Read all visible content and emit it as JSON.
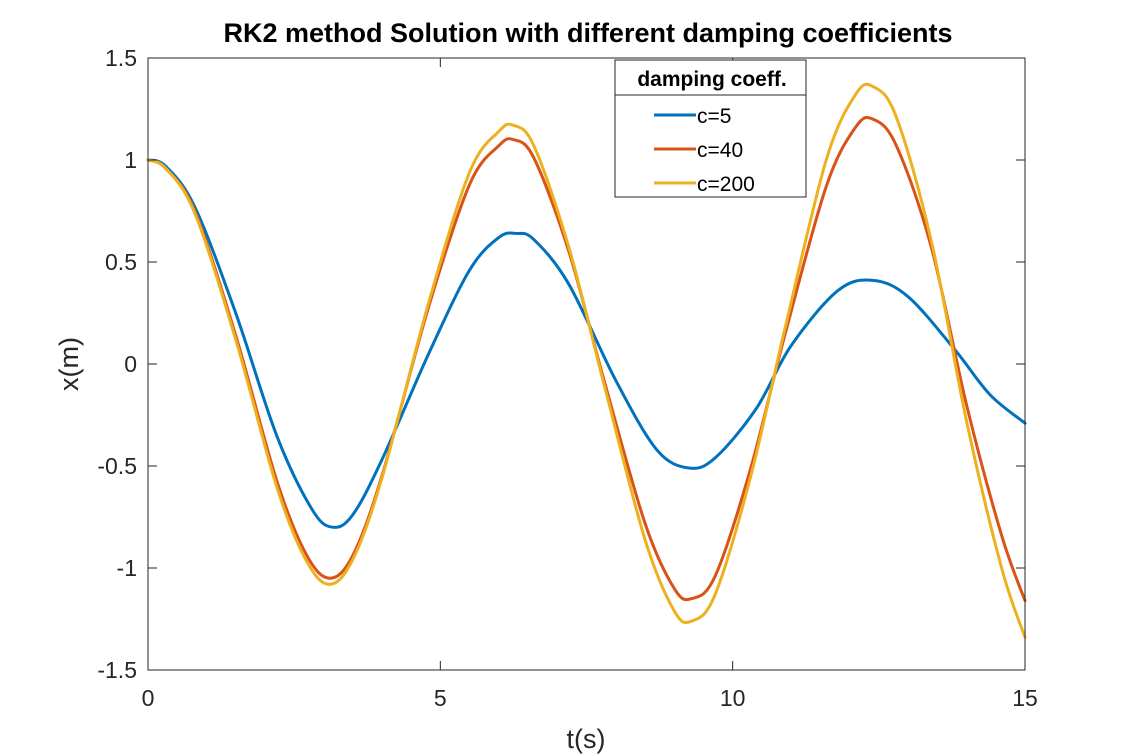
{
  "chart_data": {
    "type": "line",
    "title": "RK2 method Solution with different damping coefficients",
    "xlabel": "t(s)",
    "ylabel": "x(m)",
    "xlim": [
      0,
      15
    ],
    "ylim": [
      -1.5,
      1.5
    ],
    "xticks": [
      "0",
      "5",
      "10",
      "15"
    ],
    "yticks": [
      "-1.5",
      "-1",
      "-0.5",
      "0",
      "0.5",
      "1",
      "1.5"
    ],
    "grid": false,
    "legend": {
      "title": "damping coeff.",
      "placement": "top-center-right",
      "entries": [
        "c=5",
        "c=40",
        "c=200"
      ]
    },
    "series": [
      {
        "name": "c=5",
        "color": "#0072BD",
        "points": [
          [
            0,
            1.0
          ],
          [
            0.3,
            0.97
          ],
          [
            0.8,
            0.77
          ],
          [
            1.5,
            0.25
          ],
          [
            2.2,
            -0.35
          ],
          [
            2.8,
            -0.71
          ],
          [
            3.15,
            -0.8
          ],
          [
            3.5,
            -0.74
          ],
          [
            4.0,
            -0.47
          ],
          [
            4.8,
            0.05
          ],
          [
            5.5,
            0.46
          ],
          [
            6.0,
            0.62
          ],
          [
            6.3,
            0.64
          ],
          [
            6.6,
            0.61
          ],
          [
            7.2,
            0.39
          ],
          [
            8.0,
            -0.08
          ],
          [
            8.7,
            -0.42
          ],
          [
            9.25,
            -0.51
          ],
          [
            9.7,
            -0.46
          ],
          [
            10.4,
            -0.22
          ],
          [
            11.0,
            0.09
          ],
          [
            11.8,
            0.36
          ],
          [
            12.4,
            0.41
          ],
          [
            13.0,
            0.33
          ],
          [
            13.8,
            0.07
          ],
          [
            14.4,
            -0.15
          ],
          [
            15.0,
            -0.29
          ]
        ]
      },
      {
        "name": "c=40",
        "color": "#D95319",
        "points": [
          [
            0,
            1.0
          ],
          [
            0.3,
            0.96
          ],
          [
            0.8,
            0.75
          ],
          [
            1.5,
            0.14
          ],
          [
            2.2,
            -0.57
          ],
          [
            2.7,
            -0.93
          ],
          [
            3.1,
            -1.05
          ],
          [
            3.5,
            -0.94
          ],
          [
            4.0,
            -0.55
          ],
          [
            4.8,
            0.28
          ],
          [
            5.5,
            0.88
          ],
          [
            6.0,
            1.07
          ],
          [
            6.25,
            1.1
          ],
          [
            6.6,
            1.01
          ],
          [
            7.2,
            0.55
          ],
          [
            7.8,
            -0.08
          ],
          [
            8.5,
            -0.78
          ],
          [
            9.0,
            -1.1
          ],
          [
            9.3,
            -1.15
          ],
          [
            9.7,
            -1.04
          ],
          [
            10.3,
            -0.52
          ],
          [
            10.9,
            0.15
          ],
          [
            11.6,
            0.87
          ],
          [
            12.1,
            1.16
          ],
          [
            12.4,
            1.2
          ],
          [
            12.8,
            1.07
          ],
          [
            13.4,
            0.57
          ],
          [
            14.0,
            -0.2
          ],
          [
            14.6,
            -0.84
          ],
          [
            15.0,
            -1.16
          ]
        ]
      },
      {
        "name": "c=200",
        "color": "#EDB120",
        "points": [
          [
            0,
            1.0
          ],
          [
            0.3,
            0.96
          ],
          [
            0.8,
            0.74
          ],
          [
            1.5,
            0.12
          ],
          [
            2.2,
            -0.6
          ],
          [
            2.7,
            -0.96
          ],
          [
            3.1,
            -1.08
          ],
          [
            3.5,
            -0.96
          ],
          [
            4.0,
            -0.56
          ],
          [
            4.8,
            0.3
          ],
          [
            5.5,
            0.94
          ],
          [
            6.0,
            1.14
          ],
          [
            6.25,
            1.17
          ],
          [
            6.6,
            1.07
          ],
          [
            7.2,
            0.57
          ],
          [
            7.8,
            -0.1
          ],
          [
            8.5,
            -0.86
          ],
          [
            9.0,
            -1.21
          ],
          [
            9.3,
            -1.26
          ],
          [
            9.7,
            -1.13
          ],
          [
            10.3,
            -0.56
          ],
          [
            10.9,
            0.18
          ],
          [
            11.6,
            1.0
          ],
          [
            12.1,
            1.32
          ],
          [
            12.4,
            1.36
          ],
          [
            12.8,
            1.21
          ],
          [
            13.4,
            0.6
          ],
          [
            14.0,
            -0.28
          ],
          [
            14.6,
            -1.0
          ],
          [
            15.0,
            -1.34
          ]
        ]
      }
    ]
  }
}
